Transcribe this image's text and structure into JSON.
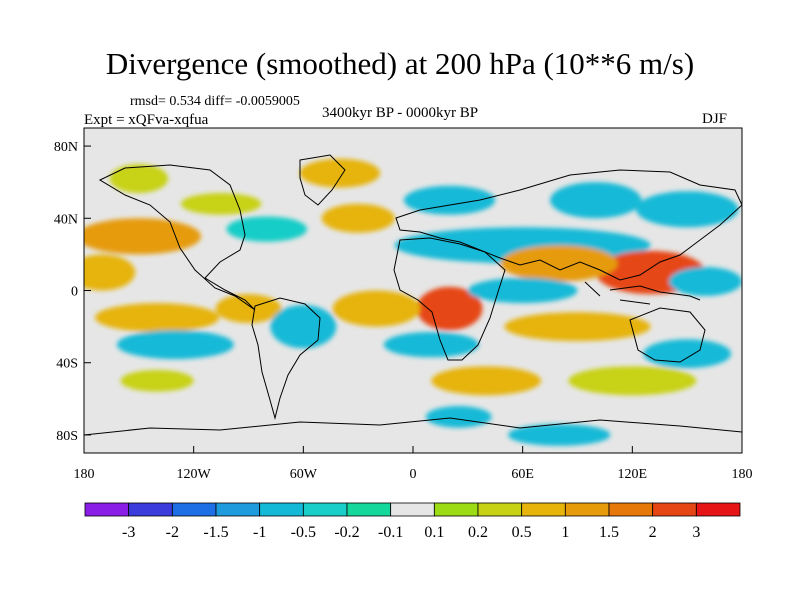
{
  "title": "Divergence (smoothed) at 200 hPa (10**6 m/s)",
  "stats_label": "rmsd= 0.534 diff= -0.0059005",
  "expt_label": "Expt = xQFva-xqfua",
  "period_label": "3400kyr BP - 0000kyr BP",
  "season_label": "DJF",
  "chart_data": {
    "type": "heatmap",
    "title": "Divergence (smoothed) at 200 hPa (10**6 m/s)",
    "variable": "200 hPa smoothed divergence difference",
    "units": "10**6 m/s",
    "x_ticks": [
      {
        "value": -180,
        "label": "180"
      },
      {
        "value": -120,
        "label": "120W"
      },
      {
        "value": -60,
        "label": "60W"
      },
      {
        "value": 0,
        "label": "0"
      },
      {
        "value": 60,
        "label": "60E"
      },
      {
        "value": 120,
        "label": "120E"
      },
      {
        "value": 180,
        "label": "180"
      }
    ],
    "y_ticks": [
      {
        "value": 80,
        "label": "80N"
      },
      {
        "value": 40,
        "label": "40N"
      },
      {
        "value": 0,
        "label": "0"
      },
      {
        "value": -40,
        "label": "40S"
      },
      {
        "value": -80,
        "label": "80S"
      }
    ],
    "xlim": [
      -180,
      180
    ],
    "ylim": [
      -90,
      90
    ],
    "colorbar": {
      "levels": [
        "-3",
        "-2",
        "-1.5",
        "-1",
        "-0.5",
        "-0.2",
        "-0.1",
        "0.1",
        "0.2",
        "0.5",
        "1",
        "1.5",
        "2",
        "3"
      ],
      "colors": [
        "#8a1ee6",
        "#3c3cdc",
        "#1e6ee6",
        "#1e9bdc",
        "#14b9d7",
        "#19cdc8",
        "#14d79b",
        "#e6e6e6",
        "#9bdc14",
        "#c8d214",
        "#e6b40a",
        "#e69b0a",
        "#e6780a",
        "#e64614",
        "#e61414"
      ]
    },
    "field_features": [
      {
        "lon": -150,
        "lat": 30,
        "value": 1.4,
        "rx": 34,
        "ry": 10
      },
      {
        "lon": -105,
        "lat": 48,
        "value": 0.3,
        "rx": 22,
        "ry": 6
      },
      {
        "lon": -150,
        "lat": 62,
        "value": 0.5,
        "rx": 16,
        "ry": 8
      },
      {
        "lon": -80,
        "lat": 34,
        "value": -0.4,
        "rx": 22,
        "ry": 7
      },
      {
        "lon": -30,
        "lat": 40,
        "value": 0.8,
        "rx": 20,
        "ry": 8
      },
      {
        "lon": -40,
        "lat": 65,
        "value": 0.6,
        "rx": 22,
        "ry": 8
      },
      {
        "lon": 20,
        "lat": 50,
        "value": -0.5,
        "rx": 25,
        "ry": 8
      },
      {
        "lon": 60,
        "lat": 25,
        "value": -0.8,
        "rx": 70,
        "ry": 10
      },
      {
        "lon": 100,
        "lat": 50,
        "value": -0.7,
        "rx": 25,
        "ry": 10
      },
      {
        "lon": 150,
        "lat": 45,
        "value": -0.6,
        "rx": 28,
        "ry": 10
      },
      {
        "lon": 130,
        "lat": 10,
        "value": 2.3,
        "rx": 30,
        "ry": 12
      },
      {
        "lon": 80,
        "lat": 15,
        "value": 1.1,
        "rx": 32,
        "ry": 10
      },
      {
        "lon": 160,
        "lat": 5,
        "value": -0.6,
        "rx": 20,
        "ry": 8
      },
      {
        "lon": 20,
        "lat": -10,
        "value": 2.5,
        "rx": 18,
        "ry": 12
      },
      {
        "lon": -20,
        "lat": -10,
        "value": 0.8,
        "rx": 24,
        "ry": 10
      },
      {
        "lon": 60,
        "lat": 0,
        "value": -0.8,
        "rx": 30,
        "ry": 7
      },
      {
        "lon": -140,
        "lat": -15,
        "value": 1.0,
        "rx": 34,
        "ry": 8
      },
      {
        "lon": -90,
        "lat": -10,
        "value": 0.8,
        "rx": 18,
        "ry": 8
      },
      {
        "lon": -170,
        "lat": 10,
        "value": 0.6,
        "rx": 18,
        "ry": 10
      },
      {
        "lon": -130,
        "lat": -30,
        "value": -0.6,
        "rx": 32,
        "ry": 8
      },
      {
        "lon": -60,
        "lat": -20,
        "value": -0.8,
        "rx": 18,
        "ry": 12
      },
      {
        "lon": 10,
        "lat": -30,
        "value": -0.7,
        "rx": 26,
        "ry": 7
      },
      {
        "lon": 90,
        "lat": -20,
        "value": 0.7,
        "rx": 40,
        "ry": 8
      },
      {
        "lon": 150,
        "lat": -35,
        "value": -0.6,
        "rx": 24,
        "ry": 8
      },
      {
        "lon": -140,
        "lat": -50,
        "value": 0.3,
        "rx": 20,
        "ry": 6
      },
      {
        "lon": 40,
        "lat": -50,
        "value": 0.6,
        "rx": 30,
        "ry": 8
      },
      {
        "lon": 120,
        "lat": -50,
        "value": 0.5,
        "rx": 35,
        "ry": 8
      },
      {
        "lon": 25,
        "lat": -70,
        "value": -0.5,
        "rx": 18,
        "ry": 6
      },
      {
        "lon": 80,
        "lat": -80,
        "value": -0.5,
        "rx": 28,
        "ry": 6
      }
    ]
  }
}
